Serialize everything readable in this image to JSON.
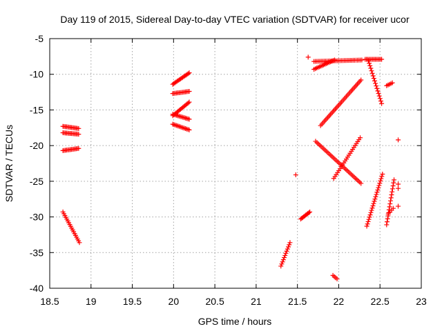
{
  "chart_data": {
    "type": "scatter",
    "title": "Day 119 of 2015, Sidereal Day-to-day VTEC variation (SDTVAR) for receiver ucor",
    "xlabel": "GPS time / hours",
    "ylabel": "SDTVAR / TECUs",
    "xlim": [
      18.5,
      23
    ],
    "ylim": [
      -40,
      -5
    ],
    "grid": true,
    "xticks": [
      18.5,
      19,
      19.5,
      20,
      20.5,
      21,
      21.5,
      22,
      22.5,
      23
    ],
    "xtick_labels": [
      "18.5",
      "19",
      "19.5",
      "20",
      "20.5",
      "21",
      "21.5",
      "22",
      "22.5",
      "23"
    ],
    "yticks": [
      -40,
      -35,
      -30,
      -25,
      -20,
      -15,
      -10,
      -5
    ],
    "ytick_labels": [
      "-40",
      "-35",
      "-30",
      "-25",
      "-20",
      "-15",
      "-10",
      "-5"
    ],
    "marker": "plus",
    "series": [
      {
        "name": "arc-18.65-a",
        "color": "#ff0000",
        "x_start": 18.66,
        "y_start": -17.3,
        "x_end": 18.85,
        "y_end": -17.6,
        "count": 14
      },
      {
        "name": "arc-18.65-b",
        "color": "#ff0000",
        "x_start": 18.66,
        "y_start": -18.2,
        "x_end": 18.85,
        "y_end": -18.4,
        "count": 14
      },
      {
        "name": "arc-18.65-c",
        "color": "#ff0000",
        "x_start": 18.66,
        "y_start": -20.7,
        "x_end": 18.85,
        "y_end": -20.4,
        "count": 14
      },
      {
        "name": "arc-18.65-d",
        "color": "#ff0000",
        "x_start": 18.66,
        "y_start": -29.3,
        "x_end": 18.86,
        "y_end": -33.6,
        "count": 18
      },
      {
        "name": "arc-20.0-a",
        "color": "#ff0000",
        "x_start": 19.99,
        "y_start": -11.4,
        "x_end": 20.19,
        "y_end": -9.8,
        "count": 16
      },
      {
        "name": "arc-20.0-b",
        "color": "#ff0000",
        "x_start": 19.99,
        "y_start": -12.7,
        "x_end": 20.19,
        "y_end": -12.4,
        "count": 14
      },
      {
        "name": "arc-20.0-c",
        "color": "#ff0000",
        "x_start": 19.99,
        "y_start": -15.8,
        "x_end": 20.19,
        "y_end": -13.9,
        "count": 16
      },
      {
        "name": "arc-20.0-d",
        "color": "#ff0000",
        "x_start": 19.99,
        "y_start": -15.6,
        "x_end": 20.19,
        "y_end": -16.3,
        "count": 14
      },
      {
        "name": "arc-20.0-e",
        "color": "#ff0000",
        "x_start": 19.99,
        "y_start": -17.0,
        "x_end": 20.19,
        "y_end": -17.8,
        "count": 14
      },
      {
        "name": "arc-21.3",
        "color": "#ff0000",
        "x_start": 21.3,
        "y_start": -36.9,
        "x_end": 21.41,
        "y_end": -33.6,
        "count": 12
      },
      {
        "name": "arc-21.48",
        "color": "#ff0000",
        "x_start": 21.48,
        "y_start": -24.1,
        "x_end": 21.48,
        "y_end": -24.1,
        "count": 1
      },
      {
        "name": "arc-21.55",
        "color": "#ff0000",
        "x_start": 21.54,
        "y_start": -30.3,
        "x_end": 21.65,
        "y_end": -29.3,
        "count": 10
      },
      {
        "name": "arc-21.63",
        "color": "#ff0000",
        "x_start": 21.63,
        "y_start": -7.6,
        "x_end": 21.63,
        "y_end": -7.6,
        "count": 1
      },
      {
        "name": "arc-21.7-a",
        "color": "#ff0000",
        "x_start": 21.7,
        "y_start": -8.2,
        "x_end": 22.28,
        "y_end": -8.0,
        "count": 34
      },
      {
        "name": "arc-21.7-b",
        "color": "#ff0000",
        "x_start": 21.7,
        "y_start": -9.3,
        "x_end": 21.95,
        "y_end": -8.0,
        "count": 16
      },
      {
        "name": "arc-21.78",
        "color": "#ff0000",
        "x_start": 21.78,
        "y_start": -17.2,
        "x_end": 22.27,
        "y_end": -10.8,
        "count": 34
      },
      {
        "name": "arc-21.72",
        "color": "#ff0000",
        "x_start": 21.72,
        "y_start": -19.4,
        "x_end": 22.27,
        "y_end": -25.3,
        "count": 34
      },
      {
        "name": "arc-21.94",
        "color": "#ff0000",
        "x_start": 21.94,
        "y_start": -24.6,
        "x_end": 22.26,
        "y_end": -18.9,
        "count": 22
      },
      {
        "name": "arc-21.93",
        "color": "#ff0000",
        "x_start": 21.93,
        "y_start": -38.2,
        "x_end": 21.98,
        "y_end": -38.7,
        "count": 4
      },
      {
        "name": "arc-22.3",
        "color": "#ff0000",
        "x_start": 22.32,
        "y_start": -7.9,
        "x_end": 22.52,
        "y_end": -7.9,
        "count": 14
      },
      {
        "name": "arc-22.36",
        "color": "#ff0000",
        "x_start": 22.36,
        "y_start": -8.1,
        "x_end": 22.52,
        "y_end": -14.1,
        "count": 18
      },
      {
        "name": "arc-22.34",
        "color": "#ff0000",
        "x_start": 22.34,
        "y_start": -31.3,
        "x_end": 22.53,
        "y_end": -24.0,
        "count": 24
      },
      {
        "name": "arc-22.58",
        "color": "#ff0000",
        "x_start": 22.58,
        "y_start": -11.6,
        "x_end": 22.65,
        "y_end": -11.2,
        "count": 5
      },
      {
        "name": "arc-22.58-b",
        "color": "#ff0000",
        "x_start": 22.58,
        "y_start": -31.1,
        "x_end": 22.67,
        "y_end": -24.8,
        "count": 16
      },
      {
        "name": "arc-22.6",
        "color": "#ff0000",
        "x_start": 22.6,
        "y_start": -29.6,
        "x_end": 22.66,
        "y_end": -28.8,
        "count": 4
      },
      {
        "name": "arc-22.72-a",
        "color": "#ff0000",
        "x_start": 22.72,
        "y_start": -19.2,
        "x_end": 22.72,
        "y_end": -19.2,
        "count": 1
      },
      {
        "name": "arc-22.72-b",
        "color": "#ff0000",
        "x_start": 22.72,
        "y_start": -25.4,
        "x_end": 22.72,
        "y_end": -26.0,
        "count": 2
      },
      {
        "name": "arc-22.72-c",
        "color": "#ff0000",
        "x_start": 22.72,
        "y_start": -28.5,
        "x_end": 22.72,
        "y_end": -28.5,
        "count": 1
      }
    ]
  }
}
